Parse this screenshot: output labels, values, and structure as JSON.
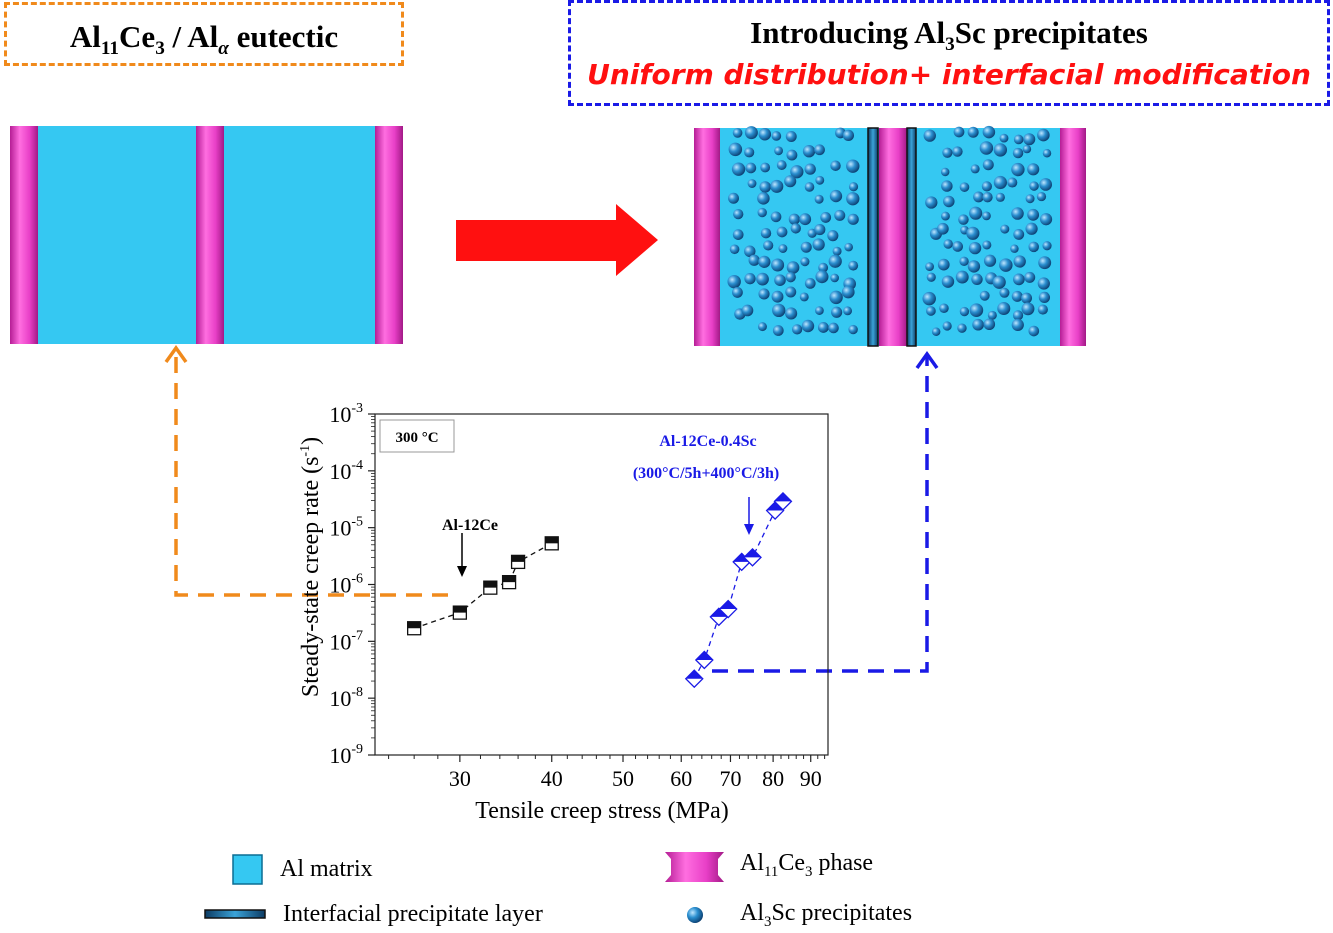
{
  "left_panel": {
    "title": "Al11Ce3 / Alα eutectic"
  },
  "right_panel": {
    "title": "Introducing Al3Sc precipitates",
    "subtitle": "Uniform distribution+ interfacial modification"
  },
  "colors": {
    "al_matrix": "#35c8f2",
    "al11ce3_phase": "#e83fc7",
    "left_arrow": "#f08a1c",
    "right_arrow": "#1a1ae6",
    "transition_arrow": "#ff1010",
    "subtitle": "#ff1010",
    "series_al12ce": "#111111",
    "series_al12ce_sc": "#1a1ae6"
  },
  "legend": {
    "al_matrix": "Al matrix",
    "al11ce3_phase": "Al11Ce3 phase",
    "interfacial_layer": "Interfacial precipitate layer",
    "al3sc": "Al3Sc precipitates"
  },
  "chart_data": {
    "type": "scatter",
    "xlabel": "Tensile creep stress (MPa)",
    "ylabel": "Steady-state creep rate (s-1)",
    "x_scale": "log",
    "y_scale": "log",
    "xlim": [
      23,
      95
    ],
    "ylim": [
      1e-09,
      0.001
    ],
    "x_ticks": [
      "30",
      "40",
      "50",
      "60",
      "70",
      "80",
      "90"
    ],
    "y_ticks": [
      "10-9",
      "10-8",
      "10-7",
      "10-6",
      "10-5",
      "10-4",
      "10-3"
    ],
    "temperature_label": "300 °C",
    "series": [
      {
        "name": "Al-12Ce",
        "marker": "half-filled square",
        "x": [
          26,
          30,
          33,
          35,
          36,
          40
        ],
        "y": [
          1.7e-07,
          3.2e-07,
          8.8e-07,
          1.1e-06,
          2.5e-06,
          5.3e-06
        ]
      },
      {
        "name": "Al-12Ce-0.4Sc",
        "condition": "(300°C/5h+400°C/3h)",
        "marker": "half-filled diamond",
        "x": [
          62.5,
          64.5,
          67.5,
          69.5,
          72.5,
          75,
          80.5,
          82.5
        ],
        "y": [
          2.2e-08,
          4.7e-08,
          2.7e-07,
          3.7e-07,
          2.5e-06,
          3e-06,
          2e-05,
          2.9e-05
        ]
      }
    ]
  }
}
